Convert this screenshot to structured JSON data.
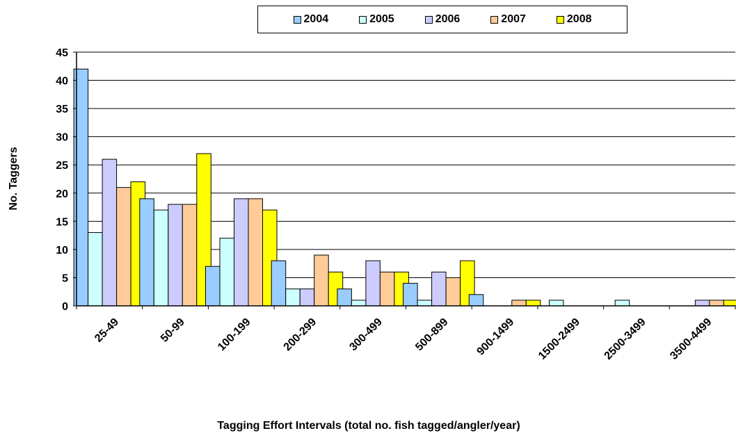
{
  "chart_data": {
    "type": "bar",
    "title": "",
    "xlabel": "Tagging Effort Intervals (total no.  fish tagged/angler/year)",
    "ylabel": "No. Taggers",
    "ylim": [
      0,
      45
    ],
    "yticks": [
      0,
      5,
      10,
      15,
      20,
      25,
      30,
      35,
      40,
      45
    ],
    "grid": true,
    "legend_position": "top",
    "categories": [
      "25-49",
      "50-99",
      "100-199",
      "200-299",
      "300-499",
      "500-899",
      "900-1499",
      "1500-2499",
      "2500-3499",
      "3500-4499"
    ],
    "series": [
      {
        "name": "2004",
        "color": "#99CCFF",
        "values": [
          42,
          19,
          7,
          8,
          3,
          4,
          2,
          0,
          0,
          0
        ]
      },
      {
        "name": "2005",
        "color": "#CCFFFF",
        "values": [
          13,
          17,
          12,
          3,
          1,
          1,
          0,
          1,
          1,
          0
        ]
      },
      {
        "name": "2006",
        "color": "#CCCCFF",
        "values": [
          26,
          18,
          19,
          3,
          8,
          6,
          0,
          0,
          0,
          1
        ]
      },
      {
        "name": "2007",
        "color": "#FFCC99",
        "values": [
          21,
          18,
          19,
          9,
          6,
          5,
          1,
          0,
          0,
          1
        ]
      },
      {
        "name": "2008",
        "color": "#FFFF00",
        "values": [
          22,
          27,
          17,
          6,
          6,
          8,
          1,
          0,
          0,
          1
        ]
      }
    ]
  }
}
